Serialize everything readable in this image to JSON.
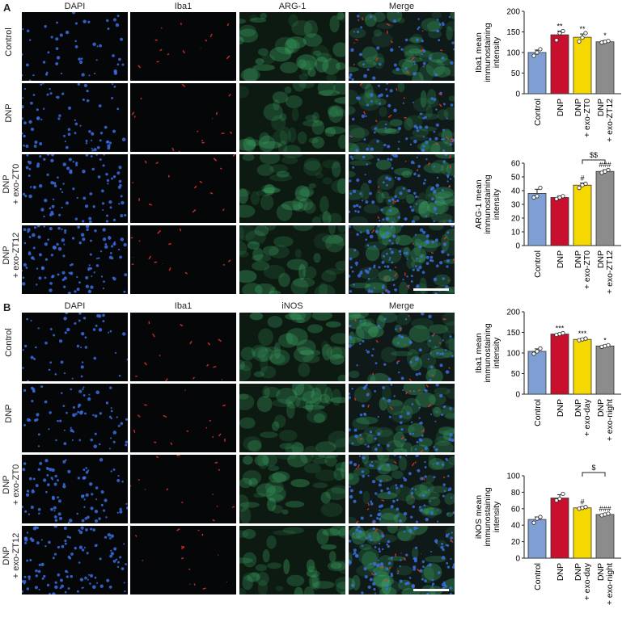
{
  "figure": {
    "panelA": {
      "letter": "A",
      "columns": [
        "DAPI",
        "Iba1",
        "ARG-1",
        "Merge"
      ],
      "rows": [
        {
          "lines": [
            "Control"
          ]
        },
        {
          "lines": [
            "DNP"
          ]
        },
        {
          "lines": [
            "DNP",
            "+ exo-ZT0"
          ]
        },
        {
          "lines": [
            "DNP",
            "+ exo-ZT12"
          ]
        }
      ]
    },
    "panelB": {
      "letter": "B",
      "columns": [
        "DAPI",
        "Iba1",
        "iNOS",
        "Merge"
      ],
      "rows": [
        {
          "lines": [
            "Control"
          ]
        },
        {
          "lines": [
            "DNP"
          ]
        },
        {
          "lines": [
            "DNP",
            "+ exo-ZT0"
          ]
        },
        {
          "lines": [
            "DNP",
            "+ exo-ZT12"
          ]
        }
      ]
    }
  },
  "colors": {
    "control": "#7f9fd4",
    "dnp": "#c8102e",
    "exo1": "#f5d800",
    "exo2": "#8c8c8c",
    "dapi": "#3a6fe0",
    "iba1": "#e8302a",
    "green": "#3fae6a"
  },
  "chart_data": [
    {
      "type": "bar",
      "ylabel": [
        "Iba1 mean",
        "immunostaining",
        "intensity"
      ],
      "ylim": [
        0,
        200
      ],
      "yticks": [
        0,
        50,
        100,
        150,
        200
      ],
      "categories": [
        [
          "Control"
        ],
        [
          "DNP"
        ],
        [
          "DNP",
          "+ exo-ZT0"
        ],
        [
          "DNP",
          "+ exo-ZT12"
        ]
      ],
      "values": [
        100,
        143,
        137,
        126
      ],
      "errors": [
        6,
        9,
        8,
        3
      ],
      "points": [
        [
          92,
          100,
          108
        ],
        [
          130,
          147,
          152
        ],
        [
          127,
          136,
          147
        ],
        [
          124,
          126,
          128
        ]
      ],
      "annotations": [
        "",
        "**",
        "**",
        "*"
      ],
      "bracket": null
    },
    {
      "type": "bar",
      "ylabel": [
        "ARG-1 mean",
        "immunostaining",
        "intensity"
      ],
      "ylim": [
        0,
        60
      ],
      "yticks": [
        0,
        10,
        20,
        30,
        40,
        50,
        60
      ],
      "categories": [
        [
          "Control"
        ],
        [
          "DNP"
        ],
        [
          "DNP",
          "+ exo-ZT0"
        ],
        [
          "DNP",
          "+ exo-ZT12"
        ]
      ],
      "values": [
        38,
        35,
        44,
        54
      ],
      "errors": [
        3,
        1,
        1.5,
        1.2
      ],
      "points": [
        [
          35,
          36,
          42
        ],
        [
          34,
          35,
          36
        ],
        [
          42,
          44,
          45
        ],
        [
          53,
          54,
          55
        ]
      ],
      "annotations": [
        "",
        "",
        "#",
        "###"
      ],
      "bracket": {
        "from": 2,
        "to": 3,
        "label": "$$"
      }
    },
    {
      "type": "bar",
      "ylabel": [
        "Iba1 mean",
        "immunostaining",
        "intensity"
      ],
      "ylim": [
        0,
        200
      ],
      "yticks": [
        0,
        50,
        100,
        150,
        200
      ],
      "categories": [
        [
          "Control"
        ],
        [
          "DNP"
        ],
        [
          "DNP",
          "+ exo-day"
        ],
        [
          "DNP",
          "+ exo-night"
        ]
      ],
      "values": [
        104,
        146,
        133,
        117
      ],
      "errors": [
        6,
        2,
        2,
        2
      ],
      "points": [
        [
          98,
          104,
          111
        ],
        [
          144,
          146,
          148
        ],
        [
          131,
          133,
          135
        ],
        [
          115,
          117,
          119
        ]
      ],
      "annotations": [
        "",
        "***",
        "***",
        "*"
      ],
      "bracket": null
    },
    {
      "type": "bar",
      "ylabel": [
        "iNOS mean",
        "immunostaining",
        "intensity"
      ],
      "ylim": [
        0,
        100
      ],
      "yticks": [
        0,
        20,
        40,
        60,
        80,
        100
      ],
      "categories": [
        [
          "Control"
        ],
        [
          "DNP"
        ],
        [
          "DNP",
          "+ exo-day"
        ],
        [
          "DNP",
          "+ exo-night"
        ]
      ],
      "values": [
        47,
        73,
        61,
        53
      ],
      "errors": [
        3,
        4,
        1.5,
        1
      ],
      "points": [
        [
          43,
          48,
          50
        ],
        [
          70,
          72,
          78
        ],
        [
          60,
          61,
          62
        ],
        [
          52,
          53,
          54
        ]
      ],
      "annotations": [
        "",
        "",
        "#",
        "###"
      ],
      "bracket": {
        "from": 2,
        "to": 3,
        "label": "$"
      }
    }
  ]
}
